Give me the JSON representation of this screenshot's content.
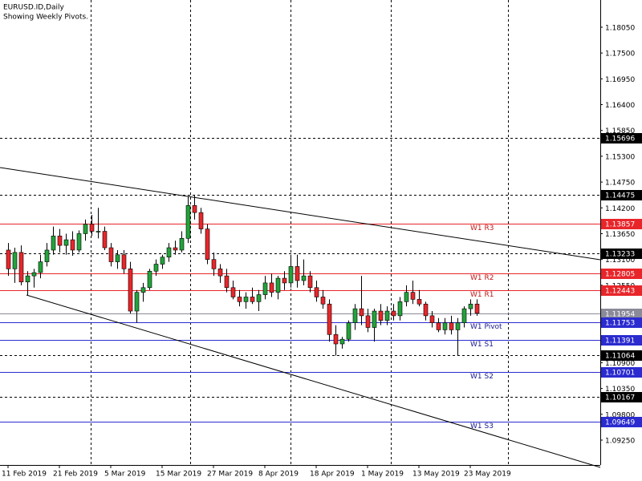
{
  "chart_data": {
    "type": "candlestick",
    "title": "EURUSD.ID,Daily",
    "subtitle": "Showing Weekly Pivots.",
    "categories": [
      "11 Feb 2019",
      null,
      null,
      null,
      null,
      null,
      null,
      null,
      "21 Feb 2019",
      null,
      null,
      null,
      null,
      null,
      null,
      null,
      "5 Mar 2019",
      null,
      null,
      null,
      null,
      null,
      null,
      null,
      "15 Mar 2019",
      null,
      null,
      null,
      null,
      null,
      null,
      null,
      "27 Mar 2019",
      null,
      null,
      null,
      null,
      null,
      null,
      null,
      "8 Apr 2019",
      null,
      null,
      null,
      null,
      null,
      null,
      null,
      "18 Apr 2019",
      null,
      null,
      null,
      null,
      null,
      null,
      null,
      "1 May 2019",
      null,
      null,
      null,
      null,
      null,
      null,
      null,
      "13 May 2019",
      null,
      null,
      null,
      null,
      null,
      null,
      null,
      "23 May 2019",
      null
    ],
    "open": [
      1.133,
      1.129,
      1.1325,
      1.1262,
      1.1275,
      1.1282,
      1.1305,
      1.133,
      1.136,
      1.134,
      1.1352,
      1.133,
      1.1365,
      1.1385,
      1.137,
      1.137,
      1.1335,
      1.1305,
      1.132,
      1.129,
      1.12,
      1.124,
      1.125,
      1.1285,
      1.13,
      1.1315,
      1.1335,
      1.133,
      1.1355,
      1.1425,
      1.141,
      1.1375,
      1.131,
      1.129,
      1.1275,
      1.125,
      1.123,
      1.122,
      1.123,
      1.122,
      1.1235,
      1.126,
      1.124,
      1.127,
      1.126,
      1.1295,
      1.1265,
      1.1275,
      1.125,
      1.123,
      1.1215,
      1.115,
      1.113,
      1.114,
      1.1175,
      1.1205,
      1.119,
      1.1165,
      1.12,
      1.118,
      1.12,
      1.119,
      1.122,
      1.124,
      1.1225,
      1.1215,
      1.119,
      1.1175,
      1.116,
      1.1175,
      1.116,
      1.1175,
      1.1205,
      1.1215
    ],
    "high": [
      1.1345,
      1.1335,
      1.134,
      1.1285,
      1.129,
      1.132,
      1.1345,
      1.138,
      1.1375,
      1.1365,
      1.137,
      1.1372,
      1.1395,
      1.1405,
      1.142,
      1.138,
      1.1345,
      1.133,
      1.133,
      1.1305,
      1.1245,
      1.126,
      1.129,
      1.131,
      1.132,
      1.1345,
      1.135,
      1.137,
      1.1445,
      1.1448,
      1.142,
      1.1385,
      1.1325,
      1.13,
      1.129,
      1.1265,
      1.1245,
      1.124,
      1.125,
      1.1245,
      1.1275,
      1.128,
      1.1275,
      1.1285,
      1.132,
      1.132,
      1.131,
      1.1285,
      1.1265,
      1.1245,
      1.1225,
      1.117,
      1.1145,
      1.118,
      1.1215,
      1.1275,
      1.1205,
      1.1205,
      1.1215,
      1.121,
      1.1215,
      1.123,
      1.1255,
      1.1265,
      1.1245,
      1.122,
      1.12,
      1.1185,
      1.1185,
      1.119,
      1.1185,
      1.121,
      1.1225,
      1.1225
    ],
    "low": [
      1.1275,
      1.126,
      1.1255,
      1.1234,
      1.125,
      1.127,
      1.1295,
      1.132,
      1.1325,
      1.132,
      1.1318,
      1.1325,
      1.135,
      1.136,
      1.1355,
      1.133,
      1.1295,
      1.129,
      1.128,
      1.1195,
      1.1175,
      1.122,
      1.1245,
      1.1275,
      1.129,
      1.1305,
      1.132,
      1.1325,
      1.1345,
      1.1395,
      1.1365,
      1.13,
      1.1275,
      1.126,
      1.124,
      1.1225,
      1.121,
      1.1205,
      1.1215,
      1.12,
      1.1225,
      1.123,
      1.1225,
      1.1245,
      1.125,
      1.125,
      1.1255,
      1.124,
      1.122,
      1.1205,
      1.1135,
      1.1105,
      1.112,
      1.1135,
      1.116,
      1.117,
      1.1155,
      1.1135,
      1.117,
      1.117,
      1.118,
      1.118,
      1.121,
      1.1215,
      1.121,
      1.118,
      1.1165,
      1.1155,
      1.115,
      1.115,
      1.1105,
      1.1165,
      1.119,
      1.119
    ],
    "close": [
      1.129,
      1.1325,
      1.1262,
      1.1275,
      1.1282,
      1.1305,
      1.133,
      1.136,
      1.134,
      1.1352,
      1.133,
      1.1365,
      1.1385,
      1.137,
      1.137,
      1.1335,
      1.1305,
      1.132,
      1.129,
      1.12,
      1.124,
      1.125,
      1.1285,
      1.13,
      1.1315,
      1.1335,
      1.133,
      1.1355,
      1.1425,
      1.141,
      1.1375,
      1.131,
      1.129,
      1.1275,
      1.125,
      1.123,
      1.122,
      1.123,
      1.122,
      1.1235,
      1.126,
      1.124,
      1.127,
      1.126,
      1.1295,
      1.1265,
      1.1275,
      1.125,
      1.123,
      1.1215,
      1.115,
      1.113,
      1.114,
      1.1175,
      1.1205,
      1.119,
      1.1165,
      1.12,
      1.118,
      1.12,
      1.119,
      1.122,
      1.124,
      1.1225,
      1.1215,
      1.119,
      1.1175,
      1.116,
      1.1175,
      1.116,
      1.1175,
      1.1205,
      1.1215,
      1.11954
    ],
    "up_color": "#22a33a",
    "down_color": "#e8262a",
    "ylim": [
      1.0872,
      1.1863
    ],
    "yticks": [
      {
        "value": 1.1805,
        "label": "1.18050"
      },
      {
        "value": 1.175,
        "label": "1.17500"
      },
      {
        "value": 1.1695,
        "label": "1.16950"
      },
      {
        "value": 1.164,
        "label": "1.16400"
      },
      {
        "value": 1.1585,
        "label": "1.15850"
      },
      {
        "value": 1.153,
        "label": "1.15300"
      },
      {
        "value": 1.1475,
        "label": "1.14750"
      },
      {
        "value": 1.142,
        "label": "1.14200"
      },
      {
        "value": 1.1365,
        "label": "1.13650"
      },
      {
        "value": 1.131,
        "label": "1.13100"
      },
      {
        "value": 1.1255,
        "label": "1.12550"
      },
      {
        "value": 1.109,
        "label": "1.10900"
      },
      {
        "value": 1.1035,
        "label": "1.10350"
      },
      {
        "value": 1.098,
        "label": "1.09800"
      },
      {
        "value": 1.0925,
        "label": "1.09250"
      }
    ],
    "levels": [
      {
        "value": 1.15696,
        "color": "#000000",
        "dashed": true
      },
      {
        "value": 1.14475,
        "color": "#000000",
        "dashed": true
      },
      {
        "value": 1.13857,
        "color": "#e8262a",
        "name": "W1 R3"
      },
      {
        "value": 1.13233,
        "color": "#000000",
        "dashed": true
      },
      {
        "value": 1.12805,
        "color": "#e8262a",
        "name": "W1 R2"
      },
      {
        "value": 1.12443,
        "color": "#e8262a",
        "name": "W1 R1"
      },
      {
        "value": 1.11954,
        "color": "#8a8a9a"
      },
      {
        "value": 1.11753,
        "color": "#2b2bd0",
        "name": "W1 Pivot"
      },
      {
        "value": 1.11391,
        "color": "#2b2bd0",
        "name": "W1 S1"
      },
      {
        "value": 1.11064,
        "color": "#000000",
        "dashed": true
      },
      {
        "value": 1.10701,
        "color": "#2b2bd0",
        "name": "W1 S2"
      },
      {
        "value": 1.10167,
        "color": "#000000",
        "dashed": true
      },
      {
        "value": 1.09649,
        "color": "#2b2bd0",
        "name": "W1 S3"
      }
    ]
  }
}
